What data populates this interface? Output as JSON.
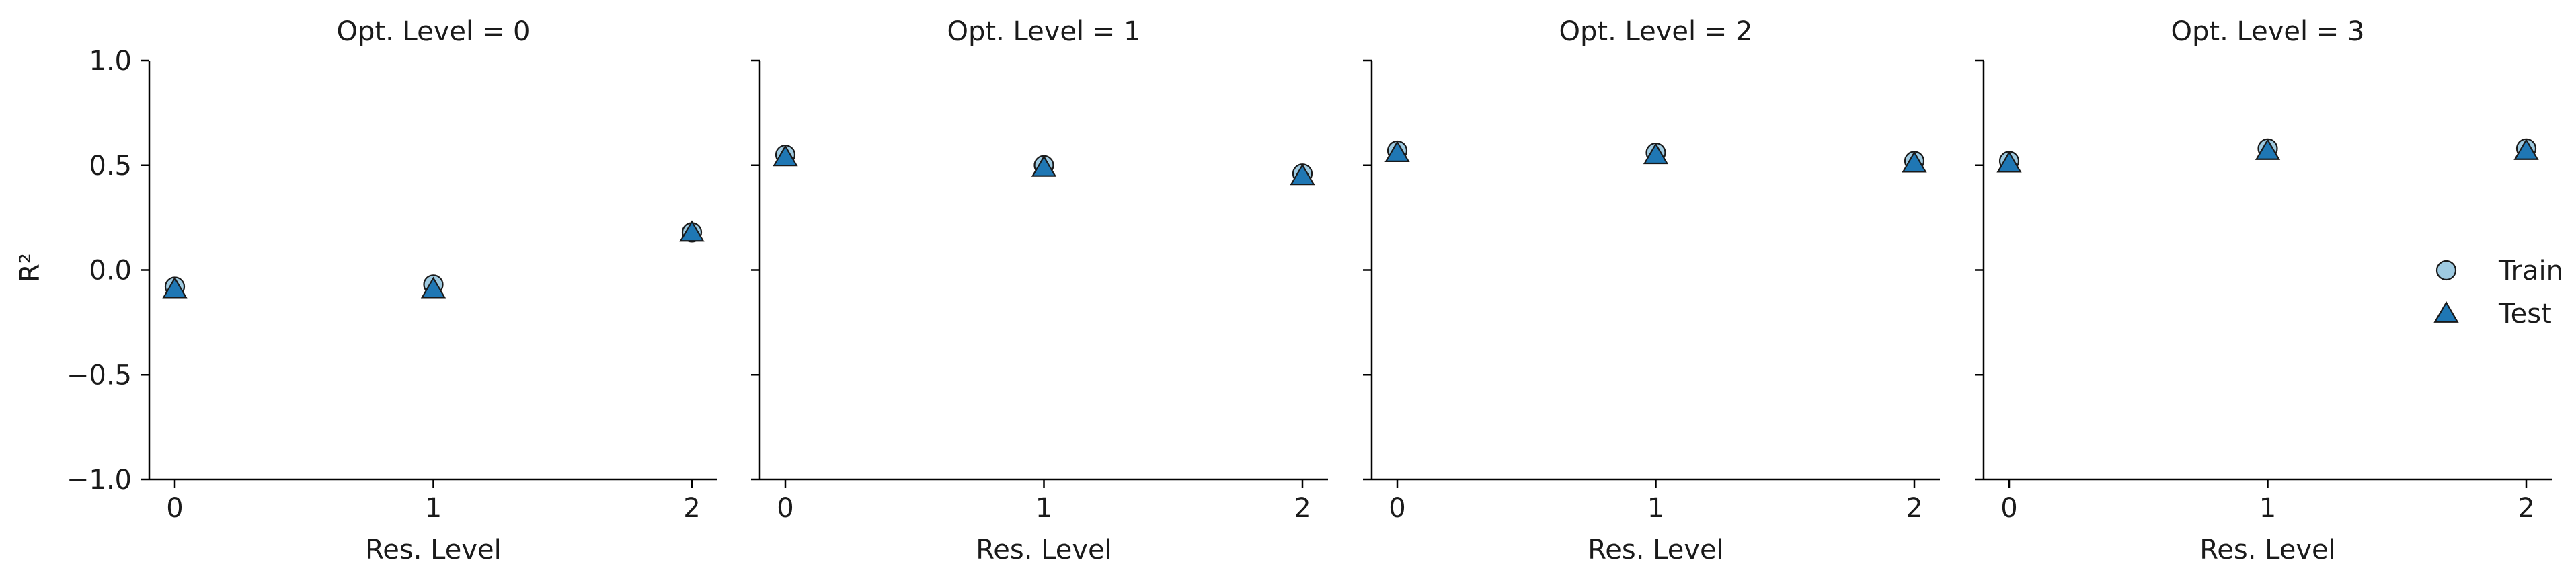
{
  "chart_data": {
    "type": "scatter",
    "ylabel": "R²",
    "ylim": [
      -1.0,
      1.0
    ],
    "y_ticks": [
      1.0,
      0.5,
      0.0,
      -0.5,
      -1.0
    ],
    "y_tick_labels": [
      "1.0",
      "0.5",
      "0.0",
      "−0.5",
      "−1.0"
    ],
    "x_categories": [
      "0",
      "1",
      "2"
    ],
    "xlabel": "Res. Level",
    "legend": {
      "placement": "center-right",
      "entries": [
        {
          "name": "Train",
          "marker": "circle"
        },
        {
          "name": "Test",
          "marker": "triangle"
        }
      ]
    },
    "colors": {
      "train": "#9ecae1",
      "test": "#1f77b4",
      "edge": "#1a1a1a"
    },
    "grid": false,
    "panels": [
      {
        "title": "Opt. Level = 0",
        "series": [
          {
            "name": "Train",
            "x": [
              "0",
              "1",
              "2"
            ],
            "values": [
              -0.08,
              -0.07,
              0.18
            ]
          },
          {
            "name": "Test",
            "x": [
              "0",
              "1",
              "2"
            ],
            "values": [
              -0.09,
              -0.09,
              0.18
            ]
          }
        ]
      },
      {
        "title": "Opt. Level = 1",
        "series": [
          {
            "name": "Train",
            "x": [
              "0",
              "1",
              "2"
            ],
            "values": [
              0.55,
              0.5,
              0.46
            ]
          },
          {
            "name": "Test",
            "x": [
              "0",
              "1",
              "2"
            ],
            "values": [
              0.54,
              0.49,
              0.45
            ]
          }
        ]
      },
      {
        "title": "Opt. Level = 2",
        "series": [
          {
            "name": "Train",
            "x": [
              "0",
              "1",
              "2"
            ],
            "values": [
              0.57,
              0.56,
              0.52
            ]
          },
          {
            "name": "Test",
            "x": [
              "0",
              "1",
              "2"
            ],
            "values": [
              0.56,
              0.55,
              0.51
            ]
          }
        ]
      },
      {
        "title": "Opt. Level = 3",
        "series": [
          {
            "name": "Train",
            "x": [
              "0",
              "1",
              "2"
            ],
            "values": [
              0.52,
              0.58,
              0.58
            ]
          },
          {
            "name": "Test",
            "x": [
              "0",
              "1",
              "2"
            ],
            "values": [
              0.51,
              0.57,
              0.57
            ]
          }
        ]
      }
    ]
  }
}
